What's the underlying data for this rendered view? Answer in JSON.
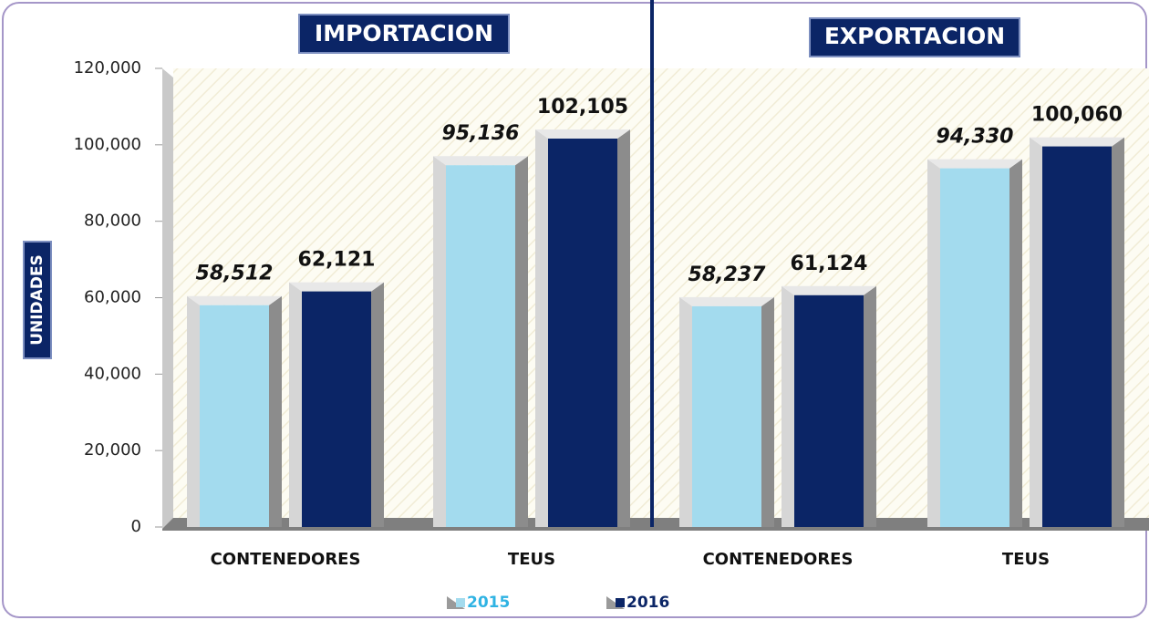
{
  "chart_data": {
    "type": "bar",
    "panel_labels": [
      "IMPORTACION",
      "EXPORTACION"
    ],
    "y_label": "UNIDADES",
    "categories": [
      "CONTENEDORES",
      "TEUS",
      "CONTENEDORES",
      "TEUS"
    ],
    "series": [
      {
        "name": "2015",
        "color": "#a3dbee",
        "values": [
          58512,
          95136,
          58237,
          94330
        ],
        "value_labels": [
          "58,512",
          "95,136",
          "58,237",
          "94,330"
        ]
      },
      {
        "name": "2016",
        "color": "#0b2566",
        "values": [
          62121,
          102105,
          61124,
          100060
        ],
        "value_labels": [
          "62,121",
          "102,105",
          "61,124",
          "100,060"
        ]
      }
    ],
    "ylim": [
      0,
      120000
    ],
    "yticks": [
      0,
      {
        "value": 20000,
        "label": "20,000"
      },
      {
        "value": 40000,
        "label": "40,000"
      },
      {
        "value": 60000,
        "label": "60,000"
      },
      {
        "value": 80000,
        "label": "80,000"
      },
      {
        "value": 100000,
        "label": "100,000"
      },
      {
        "value": 120000,
        "label": "120,000"
      }
    ],
    "grid": false
  }
}
